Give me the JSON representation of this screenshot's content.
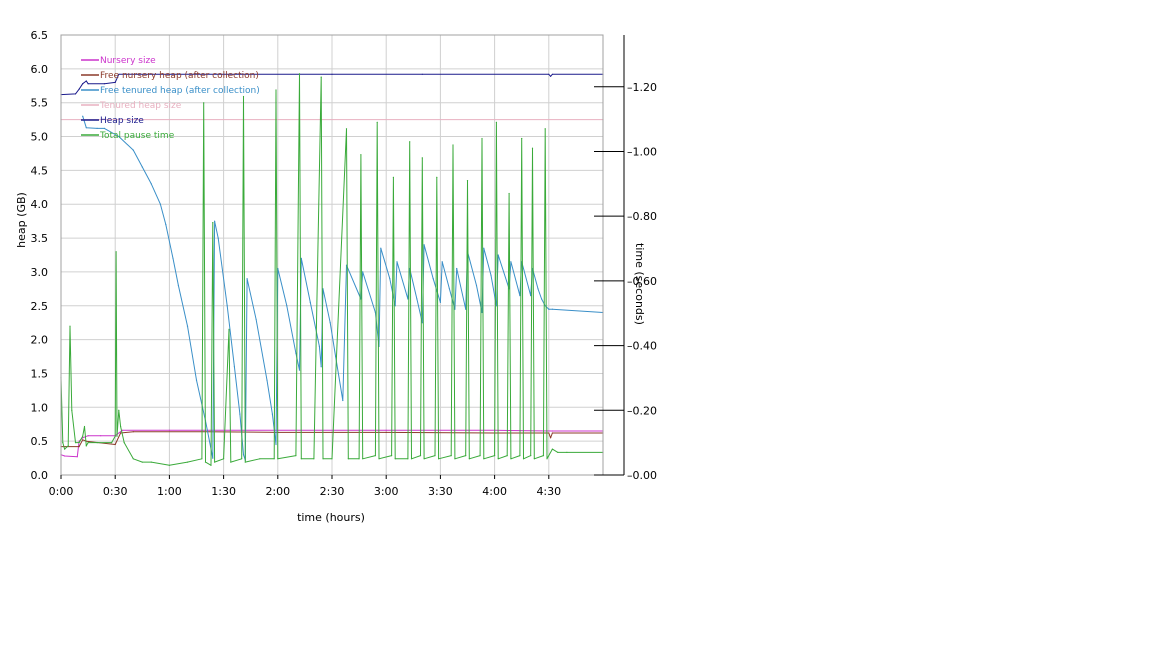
{
  "chart_data": {
    "type": "line",
    "xlabel": "time (hours)",
    "ylabel_left": "heap (GB)",
    "ylabel_right": "time (seconds)",
    "xlim": [
      0,
      300
    ],
    "ylim_left": [
      0,
      6.5
    ],
    "ylim_right": [
      0,
      1.36
    ],
    "x_ticks": [
      {
        "value": 0,
        "label": "0:00"
      },
      {
        "value": 30,
        "label": "0:30"
      },
      {
        "value": 60,
        "label": "1:00"
      },
      {
        "value": 90,
        "label": "1:30"
      },
      {
        "value": 120,
        "label": "2:00"
      },
      {
        "value": 150,
        "label": "2:30"
      },
      {
        "value": 180,
        "label": "3:00"
      },
      {
        "value": 210,
        "label": "3:30"
      },
      {
        "value": 240,
        "label": "4:00"
      },
      {
        "value": 270,
        "label": "4:30"
      }
    ],
    "y_left_ticks": [
      {
        "value": 0.0,
        "label": "0.0"
      },
      {
        "value": 0.5,
        "label": "0.5"
      },
      {
        "value": 1.0,
        "label": "1.0"
      },
      {
        "value": 1.5,
        "label": "1.5"
      },
      {
        "value": 2.0,
        "label": "2.0"
      },
      {
        "value": 2.5,
        "label": "2.5"
      },
      {
        "value": 3.0,
        "label": "3.0"
      },
      {
        "value": 3.5,
        "label": "3.5"
      },
      {
        "value": 4.0,
        "label": "4.0"
      },
      {
        "value": 4.5,
        "label": "4.5"
      },
      {
        "value": 5.0,
        "label": "5.0"
      },
      {
        "value": 5.5,
        "label": "5.5"
      },
      {
        "value": 6.0,
        "label": "6.0"
      },
      {
        "value": 6.5,
        "label": "6.5"
      }
    ],
    "y_right_ticks": [
      {
        "value": 0.0,
        "label": "0.00"
      },
      {
        "value": 0.2,
        "label": "0.20"
      },
      {
        "value": 0.4,
        "label": "0.40"
      },
      {
        "value": 0.6,
        "label": "0.60"
      },
      {
        "value": 0.8,
        "label": "0.80"
      },
      {
        "value": 1.0,
        "label": "1.00"
      },
      {
        "value": 1.2,
        "label": "1.20"
      }
    ],
    "grid": true,
    "legend_position": "top-left",
    "series": [
      {
        "name": "Nursery size",
        "color": "#cc33cc",
        "axis": "left",
        "points": [
          [
            0,
            0.3
          ],
          [
            2,
            0.28
          ],
          [
            9,
            0.27
          ],
          [
            10,
            0.5
          ],
          [
            12,
            0.55
          ],
          [
            15,
            0.58
          ],
          [
            22,
            0.58
          ],
          [
            30,
            0.58
          ],
          [
            34,
            0.66
          ],
          [
            60,
            0.66
          ],
          [
            120,
            0.66
          ],
          [
            180,
            0.66
          ],
          [
            240,
            0.66
          ],
          [
            272,
            0.65
          ],
          [
            300,
            0.65
          ]
        ]
      },
      {
        "name": "Free nursery heap (after collection)",
        "color": "#8b3a2a",
        "axis": "left",
        "points": [
          [
            0,
            0.42
          ],
          [
            10,
            0.42
          ],
          [
            12,
            0.52
          ],
          [
            14,
            0.5
          ],
          [
            20,
            0.48
          ],
          [
            30,
            0.45
          ],
          [
            33,
            0.62
          ],
          [
            40,
            0.64
          ],
          [
            80,
            0.64
          ],
          [
            120,
            0.63
          ],
          [
            180,
            0.63
          ],
          [
            240,
            0.62
          ],
          [
            270,
            0.62
          ],
          [
            271,
            0.55
          ],
          [
            272,
            0.62
          ],
          [
            300,
            0.62
          ]
        ]
      },
      {
        "name": "Free tenured heap (after collection)",
        "color": "#3a8fc8",
        "axis": "left",
        "points": [
          [
            12,
            5.3
          ],
          [
            14,
            5.13
          ],
          [
            20,
            5.12
          ],
          [
            24,
            5.12
          ],
          [
            32,
            5.0
          ],
          [
            40,
            4.8
          ],
          [
            45,
            4.55
          ],
          [
            50,
            4.3
          ],
          [
            55,
            4.0
          ],
          [
            58,
            3.7
          ],
          [
            62,
            3.2
          ],
          [
            65,
            2.8
          ],
          [
            70,
            2.2
          ],
          [
            75,
            1.4
          ],
          [
            80,
            0.8
          ],
          [
            84,
            0.25
          ],
          [
            85,
            3.75
          ],
          [
            87,
            3.5
          ],
          [
            92,
            2.5
          ],
          [
            96,
            1.6
          ],
          [
            99,
            0.9
          ],
          [
            101,
            0.3
          ],
          [
            102,
            0.22
          ],
          [
            103,
            2.9
          ],
          [
            108,
            2.3
          ],
          [
            114,
            1.4
          ],
          [
            117,
            0.9
          ],
          [
            119,
            0.45
          ],
          [
            120,
            3.05
          ],
          [
            125,
            2.5
          ],
          [
            130,
            1.8
          ],
          [
            132,
            1.55
          ],
          [
            133,
            3.2
          ],
          [
            138,
            2.55
          ],
          [
            143,
            1.9
          ],
          [
            144,
            1.6
          ],
          [
            145,
            2.75
          ],
          [
            149,
            2.25
          ],
          [
            152,
            1.75
          ],
          [
            156,
            1.1
          ],
          [
            158,
            3.1
          ],
          [
            166,
            2.6
          ],
          [
            167,
            3.0
          ],
          [
            174,
            2.4
          ],
          [
            176,
            1.9
          ],
          [
            177,
            3.35
          ],
          [
            182,
            2.9
          ],
          [
            185,
            2.5
          ],
          [
            186,
            3.15
          ],
          [
            192,
            2.6
          ],
          [
            193,
            3.05
          ],
          [
            197,
            2.6
          ],
          [
            200,
            2.25
          ],
          [
            201,
            3.4
          ],
          [
            206,
            2.9
          ],
          [
            210,
            2.55
          ],
          [
            211,
            3.15
          ],
          [
            215,
            2.75
          ],
          [
            218,
            2.45
          ],
          [
            219,
            3.05
          ],
          [
            224,
            2.45
          ],
          [
            225,
            3.3
          ],
          [
            230,
            2.8
          ],
          [
            233,
            2.4
          ],
          [
            234,
            3.35
          ],
          [
            238,
            2.95
          ],
          [
            241,
            2.5
          ],
          [
            242,
            3.25
          ],
          [
            248,
            2.75
          ],
          [
            249,
            3.15
          ],
          [
            254,
            2.65
          ],
          [
            255,
            3.15
          ],
          [
            260,
            2.65
          ],
          [
            261,
            3.05
          ],
          [
            264,
            2.75
          ],
          [
            266,
            2.6
          ],
          [
            268,
            2.5
          ],
          [
            270,
            2.45
          ],
          [
            272,
            2.45
          ],
          [
            300,
            2.4
          ]
        ]
      },
      {
        "name": "Tenured heap size",
        "color": "#e8b0c0",
        "axis": "left",
        "points": [
          [
            0,
            5.25
          ],
          [
            300,
            5.25
          ]
        ]
      },
      {
        "name": "Heap size",
        "color": "#1a1a8c",
        "axis": "left",
        "points": [
          [
            0,
            5.62
          ],
          [
            8,
            5.63
          ],
          [
            10,
            5.7
          ],
          [
            12,
            5.78
          ],
          [
            14,
            5.82
          ],
          [
            15,
            5.78
          ],
          [
            24,
            5.78
          ],
          [
            30,
            5.8
          ],
          [
            32,
            5.92
          ],
          [
            60,
            5.92
          ],
          [
            150,
            5.92
          ],
          [
            200,
            5.92
          ],
          [
            270,
            5.92
          ],
          [
            271,
            5.89
          ],
          [
            272,
            5.92
          ],
          [
            300,
            5.92
          ]
        ]
      },
      {
        "name": "Total pause time",
        "color": "#3aaa3a",
        "axis": "right",
        "points": [
          [
            0,
            0.3
          ],
          [
            1,
            0.1
          ],
          [
            2,
            0.08
          ],
          [
            4,
            0.09
          ],
          [
            5,
            0.46
          ],
          [
            6,
            0.2
          ],
          [
            8,
            0.1
          ],
          [
            10,
            0.1
          ],
          [
            12,
            0.12
          ],
          [
            13,
            0.15
          ],
          [
            14,
            0.09
          ],
          [
            15,
            0.1
          ],
          [
            20,
            0.1
          ],
          [
            28,
            0.1
          ],
          [
            30,
            0.12
          ],
          [
            30.5,
            0.69
          ],
          [
            31,
            0.12
          ],
          [
            32,
            0.2
          ],
          [
            33,
            0.15
          ],
          [
            35,
            0.1
          ],
          [
            40,
            0.05
          ],
          [
            45,
            0.04
          ],
          [
            50,
            0.04
          ],
          [
            60,
            0.03
          ],
          [
            70,
            0.04
          ],
          [
            78,
            0.05
          ],
          [
            79,
            1.15
          ],
          [
            80,
            0.04
          ],
          [
            83,
            0.03
          ],
          [
            84,
            0.78
          ],
          [
            85,
            0.04
          ],
          [
            90,
            0.05
          ],
          [
            93,
            0.45
          ],
          [
            94,
            0.04
          ],
          [
            100,
            0.05
          ],
          [
            101,
            1.17
          ],
          [
            102,
            0.04
          ],
          [
            110,
            0.05
          ],
          [
            118,
            0.05
          ],
          [
            119,
            1.19
          ],
          [
            120,
            0.05
          ],
          [
            130,
            0.06
          ],
          [
            132,
            1.24
          ],
          [
            133,
            0.05
          ],
          [
            140,
            0.05
          ],
          [
            144,
            1.23
          ],
          [
            145,
            0.05
          ],
          [
            150,
            0.05
          ],
          [
            158,
            1.07
          ],
          [
            159,
            0.05
          ],
          [
            165,
            0.05
          ],
          [
            166,
            0.99
          ],
          [
            167,
            0.05
          ],
          [
            174,
            0.06
          ],
          [
            175,
            1.09
          ],
          [
            176,
            0.05
          ],
          [
            183,
            0.06
          ],
          [
            184,
            0.92
          ],
          [
            185,
            0.05
          ],
          [
            192,
            0.05
          ],
          [
            193,
            1.03
          ],
          [
            194,
            0.05
          ],
          [
            199,
            0.06
          ],
          [
            200,
            0.98
          ],
          [
            201,
            0.05
          ],
          [
            207,
            0.06
          ],
          [
            208,
            0.92
          ],
          [
            209,
            0.05
          ],
          [
            216,
            0.06
          ],
          [
            217,
            1.02
          ],
          [
            218,
            0.05
          ],
          [
            224,
            0.06
          ],
          [
            225,
            0.91
          ],
          [
            226,
            0.05
          ],
          [
            232,
            0.06
          ],
          [
            233,
            1.04
          ],
          [
            234,
            0.05
          ],
          [
            240,
            0.06
          ],
          [
            241,
            1.09
          ],
          [
            242,
            0.05
          ],
          [
            247,
            0.06
          ],
          [
            248,
            0.87
          ],
          [
            249,
            0.05
          ],
          [
            254,
            0.06
          ],
          [
            255,
            1.04
          ],
          [
            256,
            0.05
          ],
          [
            260,
            0.06
          ],
          [
            261,
            1.01
          ],
          [
            262,
            0.05
          ],
          [
            267,
            0.06
          ],
          [
            268,
            1.07
          ],
          [
            269,
            0.05
          ],
          [
            272,
            0.08
          ],
          [
            275,
            0.07
          ],
          [
            280,
            0.07
          ],
          [
            300,
            0.07
          ]
        ]
      }
    ]
  }
}
